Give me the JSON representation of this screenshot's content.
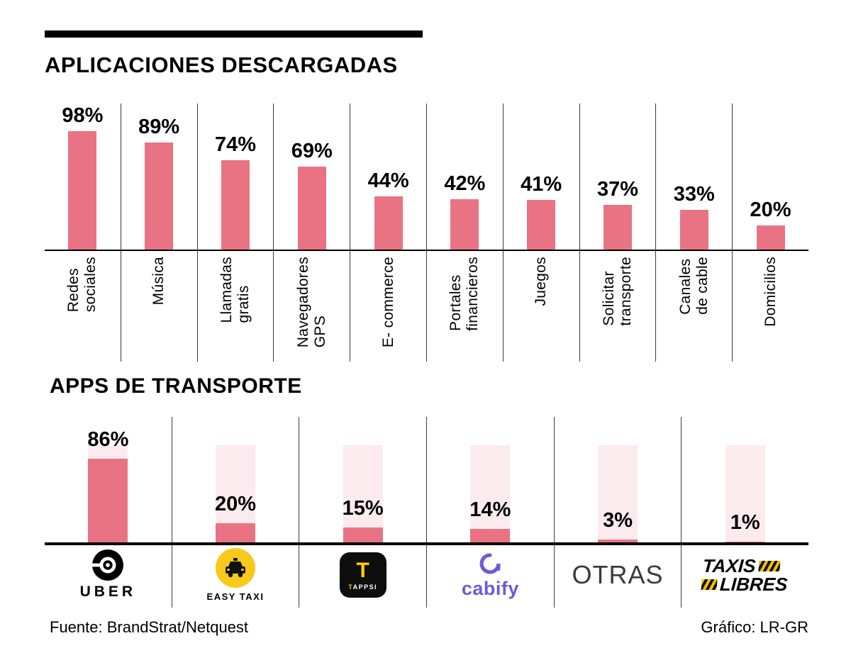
{
  "header": {
    "title": "APLICACIONES DESCARGADAS"
  },
  "section2": {
    "title": "APPS DE TRANSPORTE"
  },
  "footer": {
    "source": "Fuente: BrandStrat/Netquest",
    "credit": "Gráfico: LR-GR"
  },
  "colors": {
    "bar": "#e97383",
    "bar_light": "#fcebee",
    "easy_taxi_yellow": "#f8c81d",
    "tappsi_yellow": "#ffd000",
    "cabify_purple": "#6a5cd8"
  },
  "chart_data": [
    {
      "type": "bar",
      "title": "APLICACIONES DESCARGADAS",
      "categories": [
        "Redes\nsociales",
        "Música",
        "Llamadas\ngratis",
        "Navegadores\nGPS",
        "E- commerce",
        "Portales\nfinancieros",
        "Juegos",
        "Solicitar\ntransporte",
        "Canales\nde cable",
        "Domicilios"
      ],
      "values": [
        98,
        89,
        74,
        69,
        44,
        42,
        41,
        37,
        33,
        20
      ],
      "labels": [
        "98%",
        "89%",
        "74%",
        "69%",
        "44%",
        "42%",
        "41%",
        "37%",
        "33%",
        "20%"
      ],
      "ylim": [
        0,
        100
      ],
      "grid": false,
      "legend": false
    },
    {
      "type": "bar",
      "title": "APPS DE TRANSPORTE",
      "categories": [
        "UBER",
        "EASY TAXI",
        "TAPPSI",
        "cabify",
        "OTRAS",
        "TAXIS LIBRES"
      ],
      "values": [
        86,
        20,
        15,
        14,
        3,
        1
      ],
      "labels": [
        "86%",
        "20%",
        "15%",
        "14%",
        "3%",
        "1%"
      ],
      "ylim": [
        0,
        100
      ],
      "background_bars_full_scale": true,
      "grid": false,
      "legend": false
    }
  ],
  "logos": {
    "uber": "UBER",
    "easy_taxi": "EASY TAXI",
    "tappsi_t": "T",
    "tappsi": "TAPPSI",
    "cabify": "cabify",
    "otras": "OTRAS",
    "taxis_libres_line1": "TAXIS",
    "taxis_libres_line2": "LIBRES"
  }
}
